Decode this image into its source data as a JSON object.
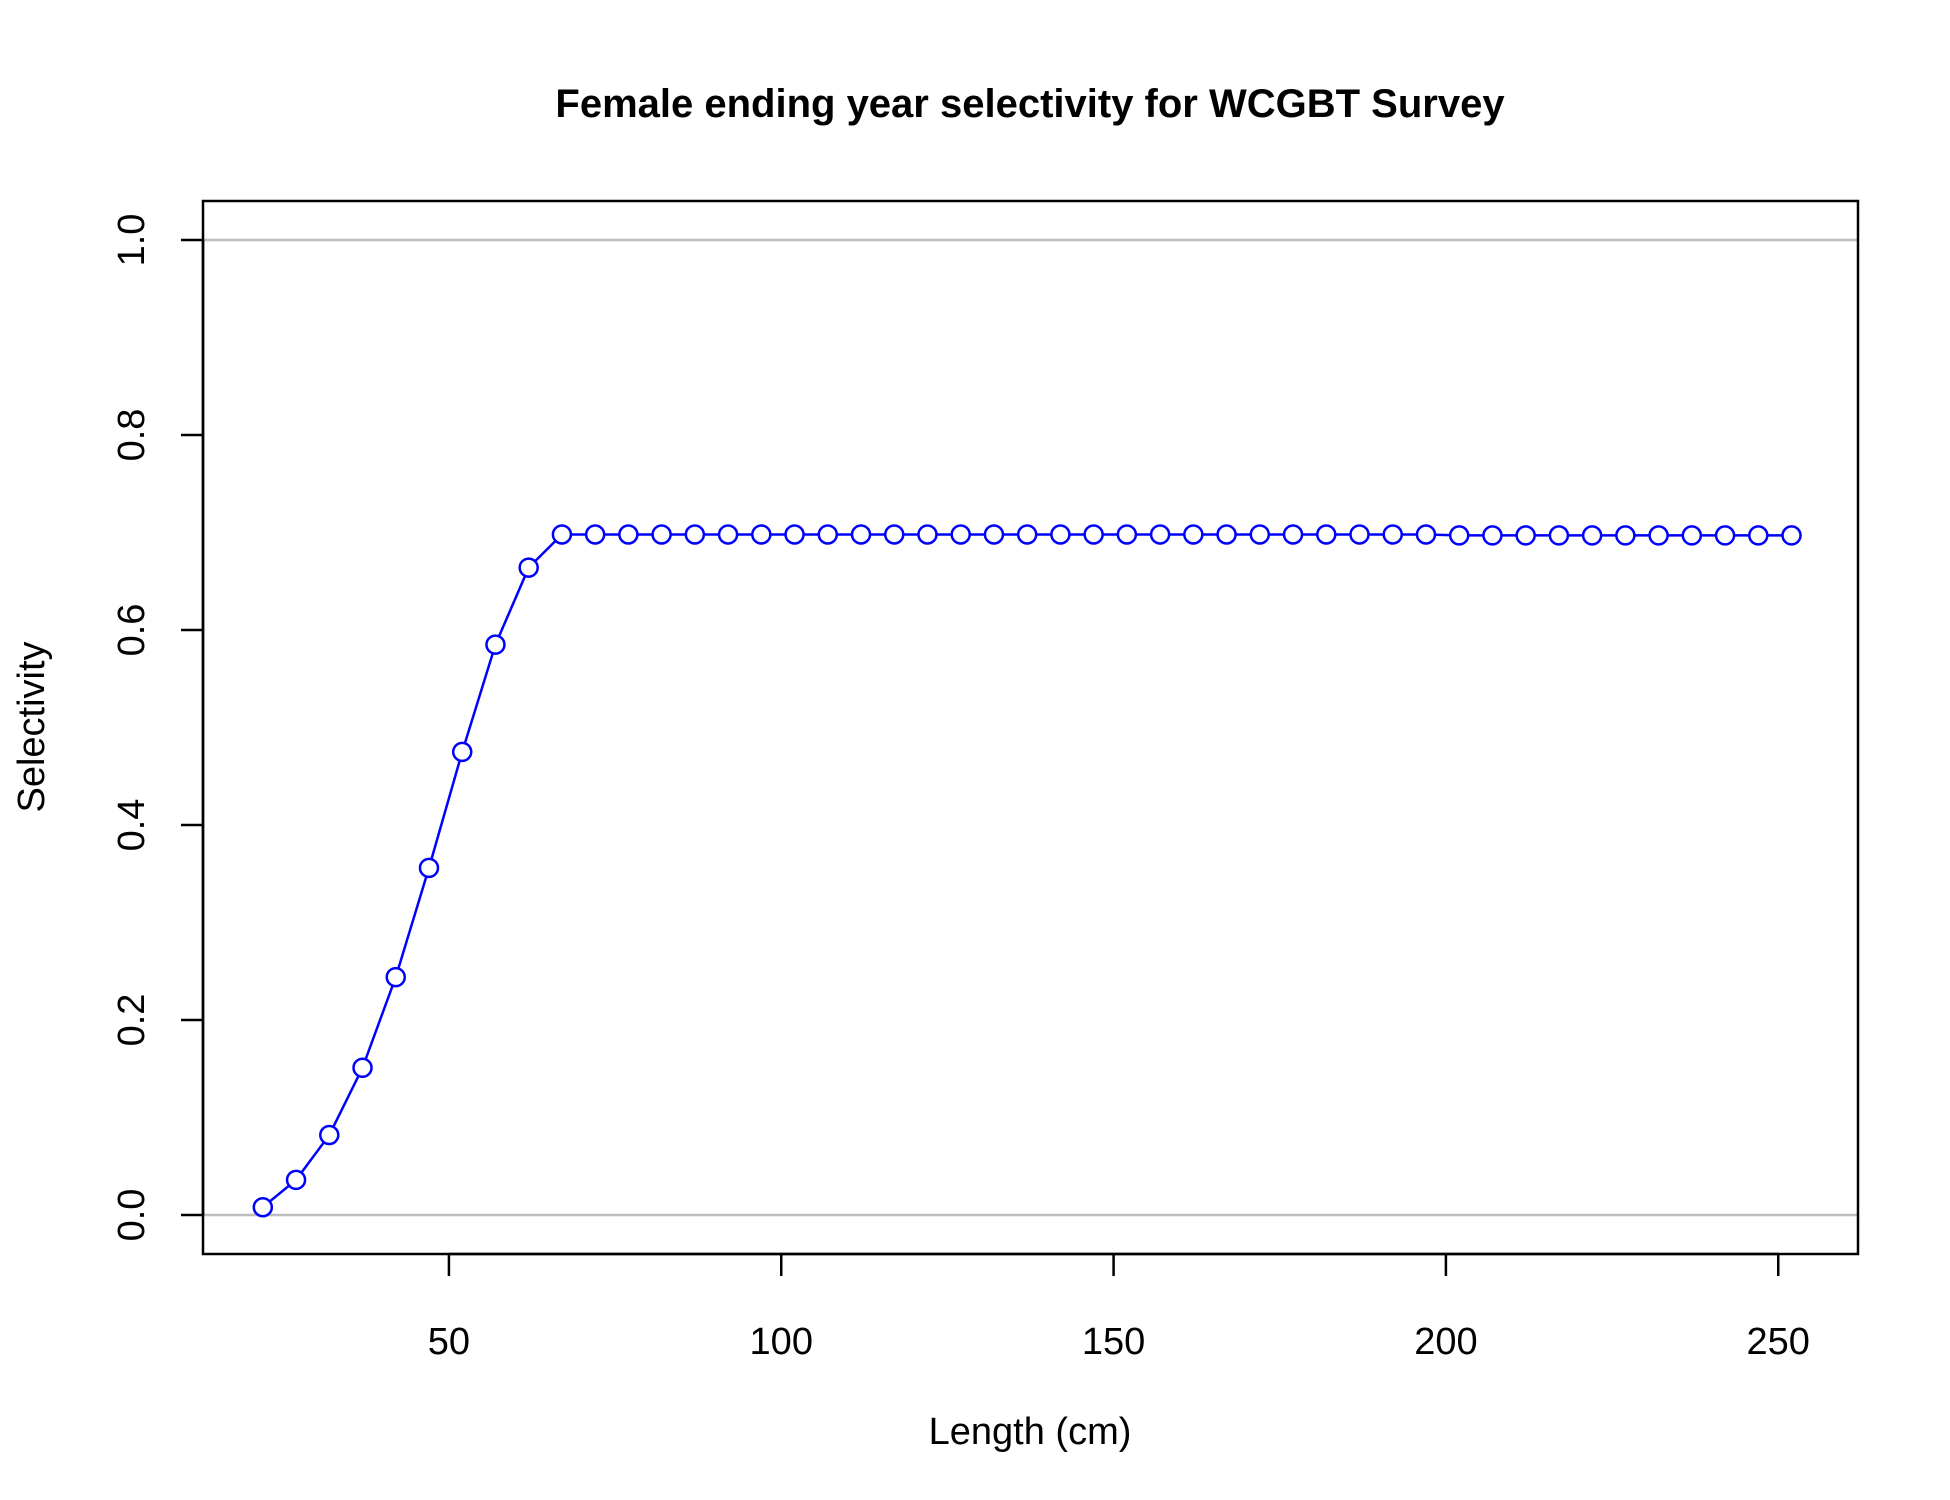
{
  "chart_data": {
    "type": "line",
    "title": "Female ending year selectivity for WCGBT Survey",
    "xlabel": "Length (cm)",
    "ylabel": "Selectivity",
    "xlim": [
      13,
      262
    ],
    "ylim": [
      -0.04,
      1.04
    ],
    "xticks": [
      50,
      100,
      150,
      200,
      250
    ],
    "yticks": [
      0.0,
      0.2,
      0.4,
      0.6,
      0.8,
      1.0
    ],
    "xtick_labels": [
      "50",
      "100",
      "150",
      "200",
      "250"
    ],
    "ytick_labels": [
      "0.0",
      "0.2",
      "0.4",
      "0.6",
      "0.8",
      "1.0"
    ],
    "reference_lines": [
      0,
      1
    ],
    "reference_line_color": "#bebebe",
    "series_color": "#0000ff",
    "markers": "open-circle",
    "grid": false,
    "series": [
      {
        "x": [
          22,
          27,
          32,
          37,
          42,
          47,
          52,
          57,
          62,
          67,
          72,
          77,
          82,
          87,
          92,
          97,
          102,
          107,
          112,
          117,
          122,
          127,
          132,
          137,
          142,
          147,
          152,
          157,
          162,
          167,
          172,
          177,
          182,
          187,
          192,
          197,
          202,
          207,
          212,
          217,
          222,
          227,
          232,
          237,
          242,
          247,
          252
        ],
        "values": [
          0.008,
          0.036,
          0.082,
          0.151,
          0.244,
          0.356,
          0.475,
          0.585,
          0.664,
          0.698,
          0.698,
          0.698,
          0.698,
          0.698,
          0.698,
          0.698,
          0.698,
          0.698,
          0.698,
          0.698,
          0.698,
          0.698,
          0.698,
          0.698,
          0.698,
          0.698,
          0.698,
          0.698,
          0.698,
          0.698,
          0.698,
          0.698,
          0.698,
          0.698,
          0.698,
          0.698,
          0.697,
          0.697,
          0.697,
          0.697,
          0.697,
          0.697,
          0.697,
          0.697,
          0.697,
          0.697,
          0.697
        ]
      }
    ]
  }
}
